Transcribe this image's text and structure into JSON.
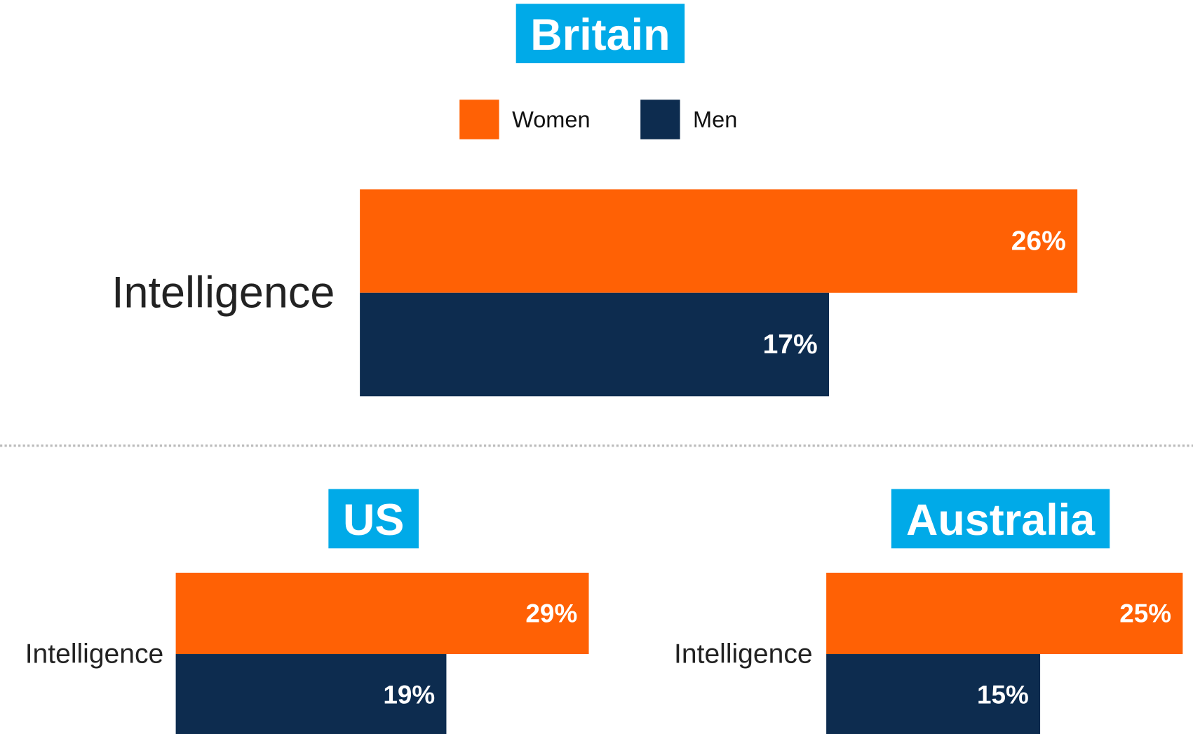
{
  "chart_data": [
    {
      "type": "bar",
      "title": "Britain",
      "categories": [
        "Intelligence"
      ],
      "legend": true,
      "series": [
        {
          "name": "Women",
          "color": "#ff6105",
          "values": [
            26
          ],
          "value_labels": [
            "26%"
          ]
        },
        {
          "name": "Men",
          "color": "#0d2c4f",
          "values": [
            17
          ],
          "value_labels": [
            "17%"
          ]
        }
      ]
    },
    {
      "type": "bar",
      "title": "US",
      "categories": [
        "Intelligence"
      ],
      "series": [
        {
          "color": "#ff6105",
          "values": [
            29
          ],
          "value_labels": [
            "29%"
          ]
        },
        {
          "color": "#0d2c4f",
          "values": [
            19
          ],
          "value_labels": [
            "19%"
          ]
        }
      ]
    },
    {
      "type": "bar",
      "title": "Australia",
      "categories": [
        "Intelligence"
      ],
      "series": [
        {
          "color": "#ff6105",
          "values": [
            25
          ],
          "value_labels": [
            "25%"
          ]
        },
        {
          "color": "#0d2c4f",
          "values": [
            15
          ],
          "value_labels": [
            "15%"
          ]
        }
      ]
    }
  ]
}
